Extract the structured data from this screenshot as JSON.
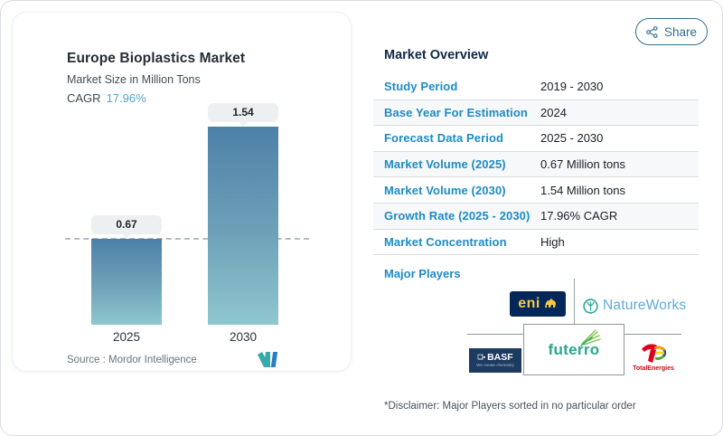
{
  "share": {
    "label": "Share"
  },
  "chart_card": {
    "title": "Europe Bioplastics Market",
    "subtitle": "Market Size in Million Tons",
    "cagr_label": "CAGR",
    "cagr_value": "17.96%",
    "source_label": "Source :",
    "source_value": "Mordor Intelligence"
  },
  "chart_data": {
    "type": "bar",
    "title": "Europe Bioplastics Market",
    "subtitle": "Market Size in Million Tons",
    "unit": "Million Tons",
    "categories": [
      "2025",
      "2030"
    ],
    "values": [
      0.67,
      1.54
    ],
    "bar_labels": [
      "0.67",
      "1.54"
    ],
    "reference_line": 0.67,
    "ylim": [
      0,
      1.7
    ],
    "legend": "none",
    "grid": "off",
    "colors": {
      "bar_gradient_top": "#4d80a8",
      "bar_gradient_bottom": "#8fc7cf",
      "reference_dash": "#b3bbc0"
    }
  },
  "overview": {
    "title": "Market Overview",
    "rows": [
      {
        "label": "Study Period",
        "value": "2019 - 2030"
      },
      {
        "label": "Base Year For Estimation",
        "value": "2024"
      },
      {
        "label": "Forecast Data Period",
        "value": "2025 - 2030"
      },
      {
        "label": "Market Volume (2025)",
        "value": "0.67 Million tons"
      },
      {
        "label": "Market Volume (2030)",
        "value": "1.54 Million tons"
      },
      {
        "label": "Growth Rate (2025 - 2030)",
        "value": "17.96% CAGR"
      },
      {
        "label": "Market Concentration",
        "value": "High"
      }
    ],
    "major_players_label": "Major Players",
    "players": {
      "eni": "eni",
      "natureworks": "NatureWorks",
      "basf": "BASF",
      "basf_tagline": "We create chemistry",
      "futerro": "futerro",
      "totalenergies": "TotalEnergies"
    },
    "disclaimer": "*Disclaimer: Major Players sorted in no particular order"
  },
  "colors": {
    "accent_blue": "#1d8bc4",
    "navy_heading": "#0f2947",
    "cagr_teal": "#56a5c5",
    "share_teal": "#2f6f8e",
    "eni_navy": "#04275a",
    "eni_yellow": "#f7c843",
    "natureworks_blue": "#5cabdb",
    "natureworks_teal": "#2aa79b",
    "futerro_green": "#2aa88b",
    "total_red": "#e2001a"
  }
}
